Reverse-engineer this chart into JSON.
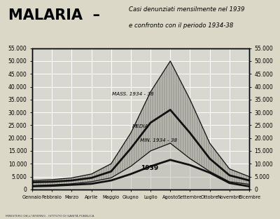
{
  "months": [
    "Gennaio",
    "Febbraio",
    "Marzo",
    "Aprile",
    "Maggio",
    "Giugno",
    "Luglio",
    "Agosto",
    "Settembre",
    "Ottobre",
    "Novembre",
    "Dicembre"
  ],
  "mass_1934_38": [
    3500,
    3800,
    4500,
    6000,
    10000,
    22000,
    38000,
    50000,
    35000,
    18000,
    8000,
    5000
  ],
  "media_1934_38": [
    2800,
    3000,
    3500,
    4500,
    7000,
    16000,
    26000,
    31000,
    22000,
    12000,
    5500,
    3500
  ],
  "min_1934_38": [
    1500,
    1800,
    2200,
    3000,
    4500,
    9000,
    15000,
    18000,
    12000,
    7000,
    3000,
    2000
  ],
  "anno_1939": [
    1200,
    1400,
    1800,
    2200,
    3500,
    6000,
    9000,
    11500,
    9500,
    6500,
    2500,
    1200
  ],
  "ylim": [
    0,
    55000
  ],
  "yticks": [
    0,
    5000,
    10000,
    15000,
    20000,
    25000,
    30000,
    35000,
    40000,
    45000,
    50000,
    55000
  ],
  "bg_color": "#d8d8d0",
  "fill_color": "#b8b8b0",
  "line_color": "#111111",
  "grid_color": "#ffffff",
  "paper_color": "#dbd8c8",
  "title_malaria": "MALARIA",
  "title_dash": "–",
  "title_sub1": "Casi denunziati mensilmente nel 1939",
  "title_sub2": "e confronto con il periodo 1934-38",
  "label_mass": "MASS. 1934 - 38",
  "label_media": "MEDIA",
  "label_min": "MIN. 1934 - 38",
  "label_1939": "1939",
  "footer": "MINISTERO DELL'INTERNO - ISTITUTO DI SANITÀ PUBBLICA"
}
